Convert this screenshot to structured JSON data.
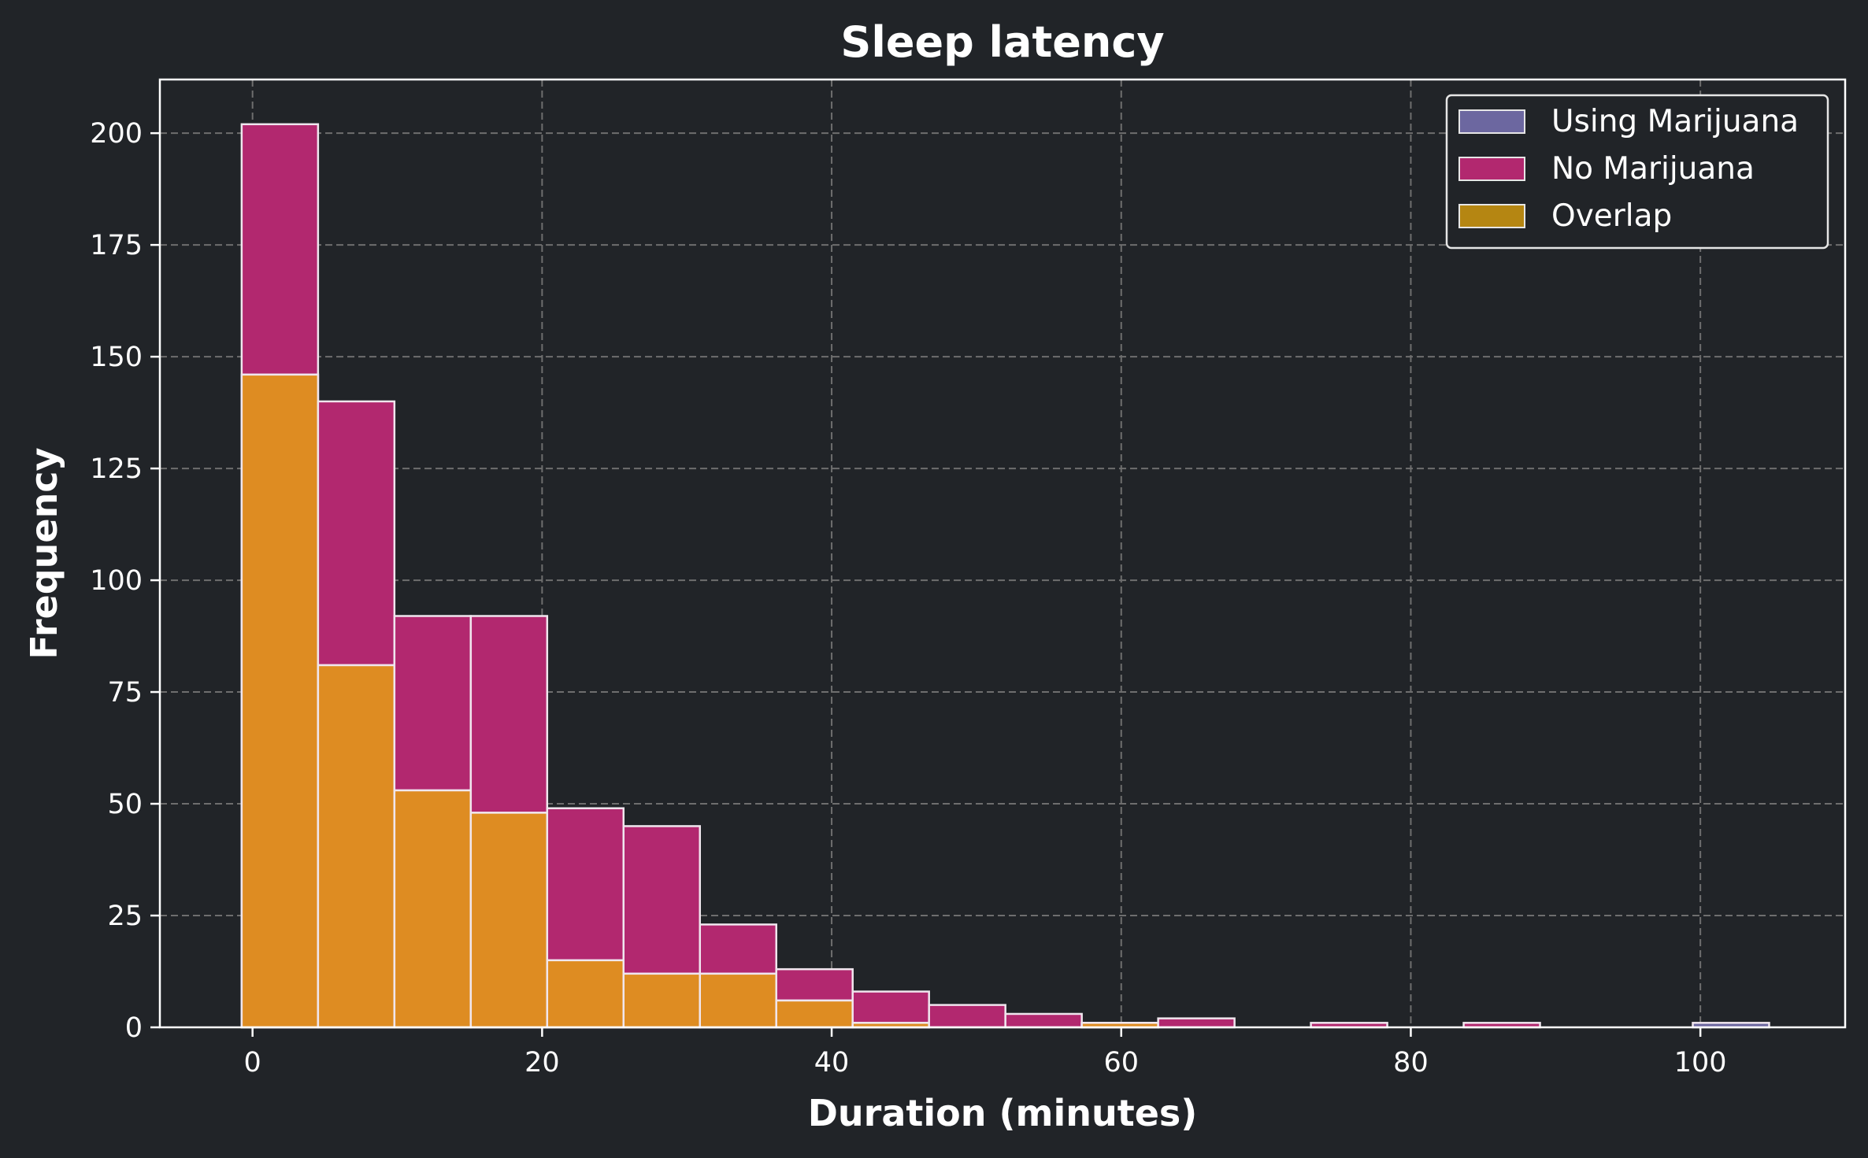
{
  "chart_data": {
    "type": "bar",
    "title": "Sleep latency",
    "xlabel": "Duration (minutes)",
    "ylabel": "Frequency",
    "xlim": [
      -6.4,
      110.0
    ],
    "ylim": [
      0,
      212
    ],
    "xticks": [
      0,
      20,
      40,
      60,
      80,
      100
    ],
    "yticks": [
      0,
      25,
      50,
      75,
      100,
      125,
      150,
      175,
      200
    ],
    "grid": true,
    "legend_position": "top-right",
    "bin_edges": [
      -0.75,
      4.525,
      9.8,
      15.075,
      20.35,
      25.625,
      30.9,
      36.175,
      41.45,
      46.725,
      52.0,
      57.275,
      62.55,
      67.825,
      73.1,
      78.375,
      83.65,
      88.925,
      94.2,
      99.475,
      104.75
    ],
    "series": [
      {
        "name": "Using Marijuana",
        "color": "#6c67a0",
        "values": [
          146,
          81,
          53,
          48,
          15,
          12,
          12,
          6,
          1,
          0,
          0,
          1,
          0,
          0,
          0,
          0,
          0,
          0,
          0,
          1
        ]
      },
      {
        "name": "No Marijuana",
        "color": "#b2286f",
        "values": [
          202,
          140,
          92,
          92,
          49,
          45,
          23,
          13,
          8,
          5,
          3,
          1,
          2,
          0,
          1,
          0,
          1,
          0,
          0,
          0
        ]
      },
      {
        "name": "Overlap",
        "color": "#b58612",
        "values": [
          146,
          81,
          53,
          48,
          15,
          12,
          12,
          6,
          1,
          0,
          0,
          1,
          0,
          0,
          0,
          0,
          0,
          0,
          0,
          0
        ]
      }
    ],
    "overlap_fill": "#de8c22"
  }
}
